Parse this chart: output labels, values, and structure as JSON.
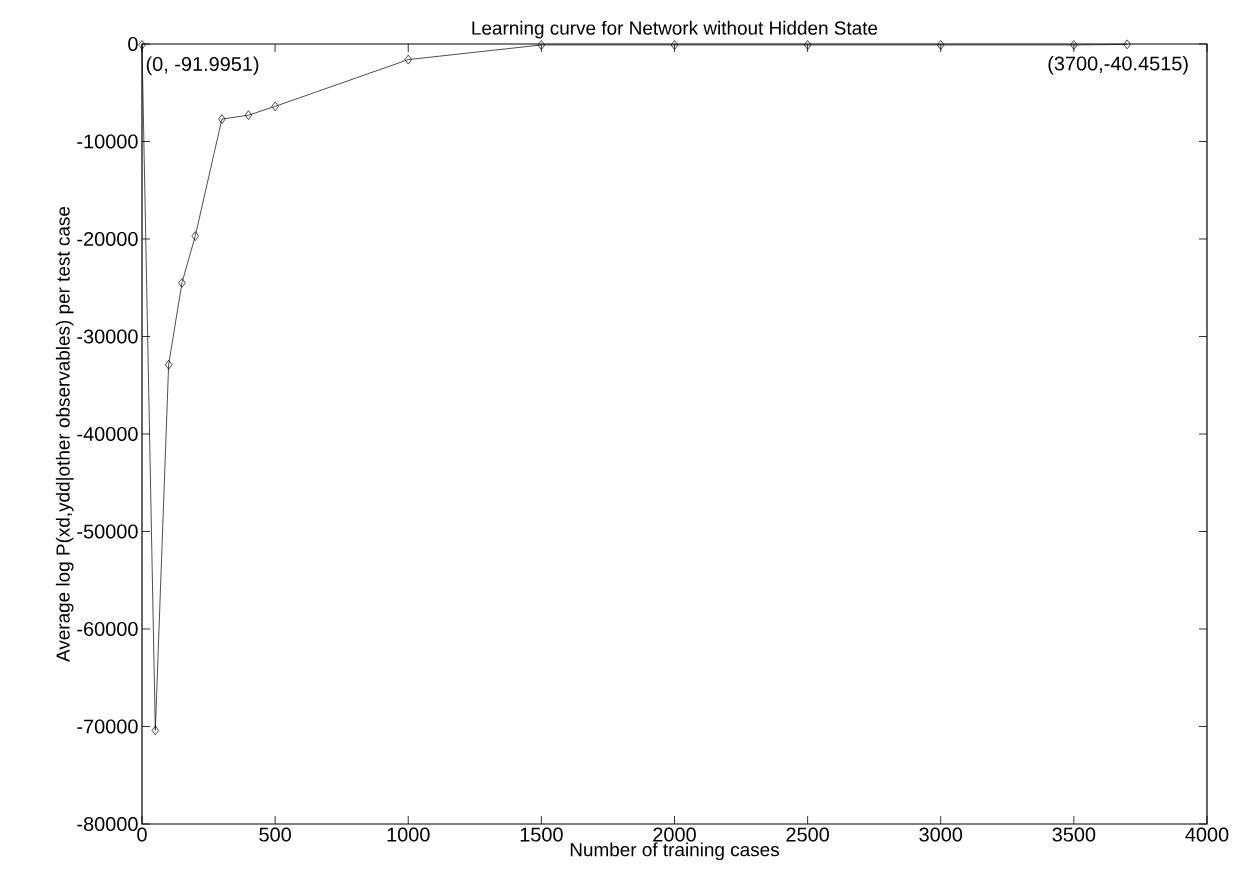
{
  "chart_data": {
    "type": "line",
    "title": "Learning curve for Network without Hidden State",
    "xlabel": "Number of training cases",
    "ylabel": "Average log P(xd,ydd|other observables) per test case",
    "x": [
      0,
      50,
      100,
      150,
      200,
      300,
      400,
      500,
      1000,
      1500,
      2000,
      2500,
      3000,
      3500,
      3700
    ],
    "series": [
      {
        "color": "#000000",
        "values": [
          -91.9951,
          -70400,
          -32900,
          -24500,
          -19700,
          -7700,
          -7300,
          -6400,
          -1600,
          -100,
          -100,
          -100,
          -100,
          -100,
          -40.4515
        ]
      }
    ],
    "xlim": [
      0,
      4000
    ],
    "ylim": [
      -80000,
      0
    ],
    "xticks": [
      0,
      500,
      1000,
      1500,
      2000,
      2500,
      3000,
      3500,
      4000
    ],
    "yticks": [
      -80000,
      -70000,
      -60000,
      -50000,
      -40000,
      -30000,
      -20000,
      -10000,
      0
    ],
    "annotations": [
      {
        "text": "(0, -91.9951)",
        "x": 0,
        "y": -91.9951
      },
      {
        "text": "(3700,-40.4515)",
        "x": 3700,
        "y": -40.4515
      }
    ],
    "marker": "diamond",
    "line_style": "solid",
    "grid": false,
    "legend": false
  }
}
